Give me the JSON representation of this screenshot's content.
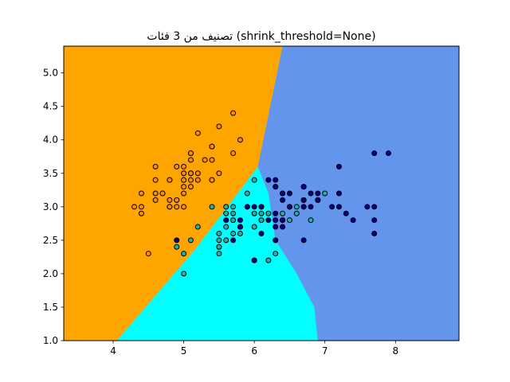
{
  "chart_data": {
    "type": "scatter",
    "title": "تصنيف من 3 فئات (shrink_threshold=None)",
    "xlabel": "",
    "ylabel": "",
    "xlim": [
      3.3,
      8.9
    ],
    "ylim": [
      1.0,
      5.4
    ],
    "x_ticks": [
      4,
      5,
      6,
      7,
      8
    ],
    "y_ticks": [
      1.0,
      1.5,
      2.0,
      2.5,
      3.0,
      3.5,
      4.0,
      4.5,
      5.0
    ],
    "x_tick_labels": [
      "4",
      "5",
      "6",
      "7",
      "8"
    ],
    "y_tick_labels": [
      "1.0",
      "1.5",
      "2.0",
      "2.5",
      "3.0",
      "3.5",
      "4.0",
      "4.5",
      "5.0"
    ],
    "grid": false,
    "regions": [
      {
        "name": "class-0-region",
        "color": "#ffa500"
      },
      {
        "name": "class-1-region",
        "color": "#00ffff"
      },
      {
        "name": "class-2-region",
        "color": "#6495ed"
      }
    ],
    "region_boundaries": {
      "class0_upper_boundary": [
        [
          4.05,
          1.0
        ],
        [
          5.15,
          2.35
        ],
        [
          6.05,
          3.6
        ],
        [
          6.4,
          5.4
        ]
      ],
      "class2_left_boundary": [
        [
          6.05,
          3.6
        ],
        [
          6.2,
          3.2
        ],
        [
          6.3,
          2.5
        ],
        [
          6.6,
          2.0
        ],
        [
          6.85,
          1.5
        ],
        [
          6.9,
          1.0
        ]
      ]
    },
    "series": [
      {
        "name": "class-0",
        "color": "#ff8c00",
        "points": [
          [
            5.1,
            3.5
          ],
          [
            4.9,
            3.0
          ],
          [
            4.7,
            3.2
          ],
          [
            4.6,
            3.1
          ],
          [
            5.0,
            3.6
          ],
          [
            5.4,
            3.9
          ],
          [
            4.6,
            3.4
          ],
          [
            5.0,
            3.4
          ],
          [
            4.4,
            2.9
          ],
          [
            4.9,
            3.1
          ],
          [
            5.4,
            3.7
          ],
          [
            4.8,
            3.4
          ],
          [
            4.8,
            3.0
          ],
          [
            4.3,
            3.0
          ],
          [
            5.8,
            4.0
          ],
          [
            5.7,
            4.4
          ],
          [
            5.4,
            3.9
          ],
          [
            5.1,
            3.5
          ],
          [
            5.7,
            3.8
          ],
          [
            5.1,
            3.8
          ],
          [
            5.4,
            3.4
          ],
          [
            5.1,
            3.7
          ],
          [
            4.6,
            3.6
          ],
          [
            5.1,
            3.3
          ],
          [
            4.8,
            3.4
          ],
          [
            5.0,
            3.0
          ],
          [
            5.0,
            3.4
          ],
          [
            5.2,
            3.5
          ],
          [
            5.2,
            3.4
          ],
          [
            4.7,
            3.2
          ],
          [
            4.8,
            3.1
          ],
          [
            5.4,
            3.4
          ],
          [
            5.2,
            4.1
          ],
          [
            5.5,
            4.2
          ],
          [
            4.9,
            3.1
          ],
          [
            5.0,
            3.2
          ],
          [
            5.5,
            3.5
          ],
          [
            4.9,
            3.6
          ],
          [
            4.4,
            3.0
          ],
          [
            5.1,
            3.4
          ],
          [
            5.0,
            3.5
          ],
          [
            4.5,
            2.3
          ],
          [
            4.4,
            3.2
          ],
          [
            5.0,
            3.5
          ],
          [
            5.1,
            3.8
          ],
          [
            4.8,
            3.0
          ],
          [
            5.1,
            3.8
          ],
          [
            4.6,
            3.2
          ],
          [
            5.3,
            3.7
          ],
          [
            5.0,
            3.3
          ]
        ]
      },
      {
        "name": "class-1",
        "color": "#20b2aa",
        "points": [
          [
            7.0,
            3.2
          ],
          [
            6.4,
            3.2
          ],
          [
            6.9,
            3.1
          ],
          [
            5.5,
            2.3
          ],
          [
            6.5,
            2.8
          ],
          [
            5.7,
            2.8
          ],
          [
            6.3,
            3.3
          ],
          [
            4.9,
            2.4
          ],
          [
            6.6,
            2.9
          ],
          [
            5.2,
            2.7
          ],
          [
            5.0,
            2.0
          ],
          [
            5.9,
            3.0
          ],
          [
            6.0,
            2.2
          ],
          [
            6.1,
            2.9
          ],
          [
            5.6,
            2.9
          ],
          [
            6.7,
            3.1
          ],
          [
            5.6,
            3.0
          ],
          [
            5.8,
            2.7
          ],
          [
            6.2,
            2.2
          ],
          [
            5.6,
            2.5
          ],
          [
            5.9,
            3.2
          ],
          [
            6.1,
            2.8
          ],
          [
            6.3,
            2.5
          ],
          [
            6.1,
            2.8
          ],
          [
            6.4,
            2.9
          ],
          [
            6.6,
            3.0
          ],
          [
            6.8,
            2.8
          ],
          [
            6.7,
            3.0
          ],
          [
            6.0,
            2.9
          ],
          [
            5.7,
            2.6
          ],
          [
            5.5,
            2.4
          ],
          [
            5.5,
            2.4
          ],
          [
            5.8,
            2.7
          ],
          [
            6.0,
            2.7
          ],
          [
            5.4,
            3.0
          ],
          [
            6.0,
            3.4
          ],
          [
            6.7,
            3.1
          ],
          [
            6.3,
            2.3
          ],
          [
            5.6,
            3.0
          ],
          [
            5.5,
            2.5
          ],
          [
            5.5,
            2.6
          ],
          [
            6.1,
            3.0
          ],
          [
            5.8,
            2.6
          ],
          [
            5.0,
            2.3
          ],
          [
            5.6,
            2.7
          ],
          [
            5.7,
            3.0
          ],
          [
            5.7,
            2.9
          ],
          [
            6.2,
            2.9
          ],
          [
            5.1,
            2.5
          ],
          [
            5.7,
            2.8
          ]
        ]
      },
      {
        "name": "class-2",
        "color": "#00008b",
        "points": [
          [
            6.3,
            3.3
          ],
          [
            5.8,
            2.7
          ],
          [
            7.1,
            3.0
          ],
          [
            6.3,
            2.9
          ],
          [
            6.5,
            3.0
          ],
          [
            7.6,
            3.0
          ],
          [
            4.9,
            2.5
          ],
          [
            7.3,
            2.9
          ],
          [
            6.7,
            2.5
          ],
          [
            7.2,
            3.6
          ],
          [
            6.5,
            3.2
          ],
          [
            6.4,
            2.7
          ],
          [
            6.8,
            3.0
          ],
          [
            5.7,
            2.5
          ],
          [
            5.8,
            2.8
          ],
          [
            6.4,
            3.2
          ],
          [
            6.5,
            3.0
          ],
          [
            7.7,
            3.8
          ],
          [
            7.7,
            2.6
          ],
          [
            6.0,
            2.2
          ],
          [
            6.9,
            3.2
          ],
          [
            5.6,
            2.8
          ],
          [
            7.7,
            2.8
          ],
          [
            6.3,
            2.7
          ],
          [
            6.7,
            3.3
          ],
          [
            7.2,
            3.2
          ],
          [
            6.2,
            2.8
          ],
          [
            6.1,
            3.0
          ],
          [
            6.4,
            2.8
          ],
          [
            7.2,
            3.0
          ],
          [
            7.4,
            2.8
          ],
          [
            7.9,
            3.8
          ],
          [
            6.4,
            2.8
          ],
          [
            6.3,
            2.8
          ],
          [
            6.1,
            2.6
          ],
          [
            7.7,
            3.0
          ],
          [
            6.3,
            3.4
          ],
          [
            6.4,
            3.1
          ],
          [
            6.0,
            3.0
          ],
          [
            6.9,
            3.1
          ],
          [
            6.7,
            3.1
          ],
          [
            6.9,
            3.1
          ],
          [
            5.8,
            2.7
          ],
          [
            6.8,
            3.2
          ],
          [
            6.7,
            3.3
          ],
          [
            6.7,
            3.0
          ],
          [
            6.3,
            2.5
          ],
          [
            6.5,
            3.0
          ],
          [
            6.2,
            3.4
          ],
          [
            5.9,
            3.0
          ]
        ]
      }
    ]
  }
}
